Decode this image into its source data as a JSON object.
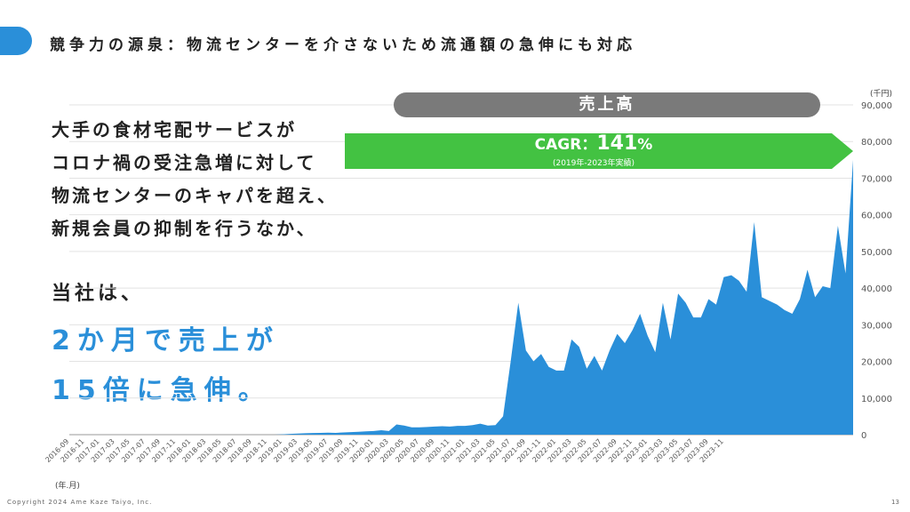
{
  "header": {
    "title": "競争力の源泉：物流センターを介さないため流通額の急伸にも対応"
  },
  "body_text": {
    "lines": [
      "大手の食材宅配サービスが",
      "コロナ禍の受注急増に対して",
      "物流センターのキャパを超え、",
      "新規会員の抑制を行うなか、"
    ],
    "mid": "当社は、",
    "big1": "2か月で売上が",
    "big2": "15倍に急伸。"
  },
  "badges": {
    "sales": "売上高",
    "cagr_prefix": "CAGR：",
    "cagr_value": "141",
    "cagr_suffix": "%",
    "cagr_note": "(2019年-2023年実績)"
  },
  "colors": {
    "accent": "#2a8fd9",
    "area": "#2a8fd9",
    "cagr_green": "#43c242",
    "pill_gray": "#7a7a7a"
  },
  "footer": {
    "copyright": "Copyright 2024 Ame Kaze Taiyo, Inc.",
    "page": "13"
  },
  "chart_data": {
    "type": "area",
    "ylabel": "(千円)",
    "xlabel": "(年.月)",
    "ylim": [
      0,
      90000
    ],
    "y_ticks": [
      0,
      10000,
      20000,
      30000,
      40000,
      50000,
      60000,
      70000,
      80000,
      90000
    ],
    "y_tick_labels": [
      "0",
      "10,000",
      "20,000",
      "30,000",
      "40,000",
      "50,000",
      "60,000",
      "70,000",
      "80,000",
      "90,000"
    ],
    "x_tick_labels": [
      "2016-09",
      "2016-11",
      "2017-01",
      "2017-03",
      "2017-05",
      "2017-07",
      "2017-09",
      "2017-11",
      "2018-01",
      "2018-03",
      "2018-05",
      "2018-07",
      "2018-09",
      "2018-11",
      "2019-01",
      "2019-03",
      "2019-05",
      "2019-07",
      "2019-09",
      "2019-11",
      "2020-01",
      "2020-03",
      "2020-05",
      "2020-07",
      "2020-09",
      "2020-11",
      "2021-01",
      "2021-03",
      "2021-05",
      "2021-07",
      "2021-09",
      "2021-11",
      "2022-01",
      "2022-03",
      "2022-05",
      "2022-07",
      "2022-09",
      "2022-11",
      "2023-01",
      "2023-03",
      "2023-05",
      "2023-07",
      "2023-09",
      "2023-11"
    ],
    "start_month": "2016-09",
    "values": [
      0,
      0,
      0,
      0,
      0,
      0,
      0,
      0,
      0,
      0,
      0,
      0,
      0,
      0,
      0,
      0,
      0,
      0,
      0,
      0,
      0,
      0,
      0,
      0,
      0,
      0,
      0,
      0,
      100,
      200,
      300,
      400,
      450,
      500,
      550,
      500,
      600,
      700,
      800,
      900,
      1000,
      1200,
      1000,
      2800,
      2500,
      2000,
      2000,
      2100,
      2200,
      2300,
      2200,
      2400,
      2400,
      2600,
      3000,
      2500,
      2600,
      5000,
      20000,
      36000,
      23000,
      20000,
      22000,
      18500,
      17500,
      17500,
      26000,
      24000,
      18000,
      21500,
      17500,
      23000,
      27500,
      25000,
      28500,
      33000,
      27000,
      22500,
      36000,
      26000,
      38500,
      36000,
      32000,
      32000,
      37000,
      35500,
      43000,
      43500,
      42000,
      39000,
      58000,
      37500,
      36500,
      35500,
      34000,
      33000,
      37000,
      45000,
      37500,
      40500,
      40000,
      57000,
      44000,
      75000
    ]
  }
}
